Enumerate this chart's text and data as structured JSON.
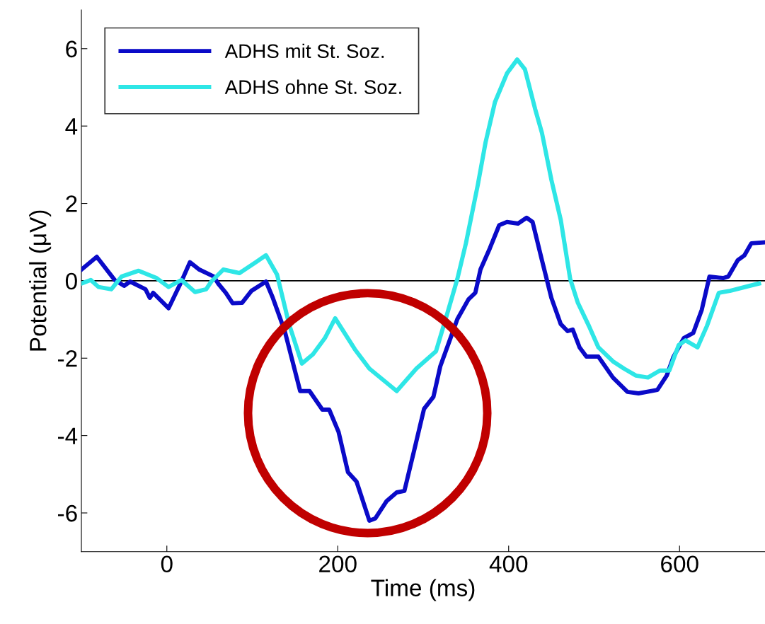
{
  "chart_data": {
    "type": "line",
    "xlabel": "Time (ms)",
    "ylabel": "Potential (μV)",
    "xlim": [
      -100,
      700
    ],
    "xticks": [
      0,
      200,
      400,
      600
    ],
    "ylim": [
      -7,
      7
    ],
    "yticks": [
      -6,
      -4,
      -2,
      0,
      2,
      4,
      6
    ],
    "grid": false,
    "legend": "top left",
    "line_style": "solid",
    "marker": "none",
    "ref_lines": [
      {
        "axis": "y",
        "value": 0,
        "color": "#000000"
      }
    ],
    "series": [
      {
        "name": "ADHS mit St. Soz.",
        "color": "#0a0ac8",
        "x": [
          -100,
          -82,
          -61,
          -50,
          -43,
          -25,
          -20,
          -16,
          2,
          17,
          27,
          38,
          55,
          60,
          69,
          77,
          88,
          99,
          116,
          124,
          138,
          156,
          167,
          182,
          190,
          201,
          212,
          222,
          237,
          244,
          257,
          269,
          278,
          290,
          301,
          312,
          320,
          331,
          340,
          353,
          361,
          367,
          378,
          389,
          398,
          411,
          421,
          428,
          439,
          450,
          461,
          469,
          475,
          483,
          491,
          505,
          522,
          539,
          552,
          574,
          585,
          593,
          605,
          616,
          626,
          635,
          651,
          657,
          668,
          676,
          684,
          698
        ],
        "values": [
          0.29,
          0.62,
          0.02,
          -0.13,
          -0.02,
          -0.22,
          -0.44,
          -0.31,
          -0.71,
          -0.02,
          0.48,
          0.29,
          0.11,
          -0.07,
          -0.31,
          -0.58,
          -0.57,
          -0.26,
          -0.02,
          -0.44,
          -1.3,
          -2.85,
          -2.85,
          -3.33,
          -3.33,
          -3.91,
          -4.95,
          -5.19,
          -6.2,
          -6.14,
          -5.7,
          -5.47,
          -5.43,
          -4.33,
          -3.31,
          -3.0,
          -2.21,
          -1.54,
          -0.99,
          -0.48,
          -0.31,
          0.29,
          0.84,
          1.44,
          1.52,
          1.48,
          1.63,
          1.52,
          0.53,
          -0.44,
          -1.12,
          -1.3,
          -1.26,
          -1.72,
          -1.96,
          -1.96,
          -2.5,
          -2.87,
          -2.91,
          -2.82,
          -2.45,
          -1.96,
          -1.48,
          -1.35,
          -0.75,
          0.11,
          0.07,
          0.11,
          0.53,
          0.66,
          0.97,
          0.99
        ]
      },
      {
        "name": "ADHS ohne St. Soz.",
        "color": "#2ee6e6",
        "x": [
          -100,
          -89,
          -80,
          -65,
          -53,
          -33,
          -12,
          2,
          17,
          33,
          46,
          52,
          66,
          85,
          104,
          116,
          129,
          143,
          158,
          171,
          185,
          197,
          220,
          237,
          269,
          292,
          315,
          328,
          340,
          350,
          364,
          373,
          384,
          398,
          410,
          419,
          431,
          439,
          450,
          461,
          472,
          481,
          494,
          505,
          522,
          535,
          549,
          563,
          577,
          588,
          599,
          607,
          621,
          632,
          646,
          659,
          682,
          693
        ],
        "values": [
          -0.07,
          0.02,
          -0.16,
          -0.22,
          0.11,
          0.26,
          0.07,
          -0.16,
          0.02,
          -0.29,
          -0.22,
          -0.02,
          0.29,
          0.2,
          0.48,
          0.66,
          0.16,
          -1.12,
          -2.14,
          -1.9,
          -1.48,
          -0.97,
          -1.77,
          -2.27,
          -2.85,
          -2.27,
          -1.82,
          -0.86,
          0.05,
          0.97,
          2.49,
          3.58,
          4.62,
          5.36,
          5.72,
          5.47,
          4.44,
          3.82,
          2.61,
          1.57,
          0.05,
          -0.57,
          -1.17,
          -1.72,
          -2.08,
          -2.27,
          -2.45,
          -2.5,
          -2.32,
          -2.32,
          -1.66,
          -1.54,
          -1.72,
          -1.17,
          -0.31,
          -0.26,
          -0.13,
          -0.07
        ]
      }
    ]
  }
}
